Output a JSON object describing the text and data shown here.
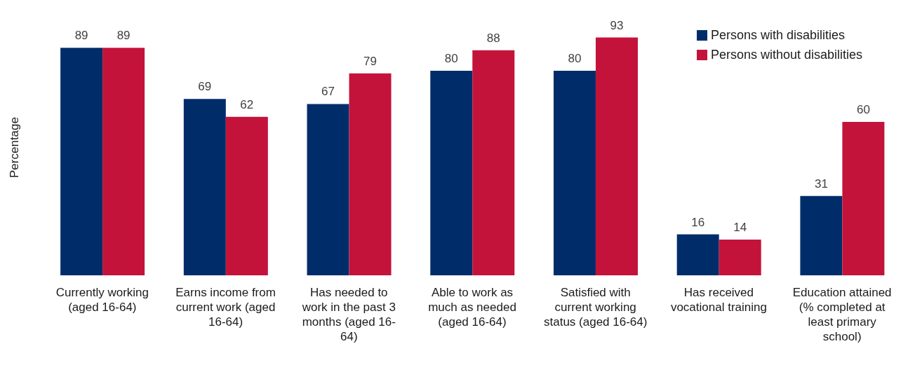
{
  "chart_data": {
    "type": "bar",
    "ylabel": "Percentage",
    "categories": [
      "Currently working (aged 16-64)",
      "Earns income from current work (aged 16-64)",
      "Has needed to work in the past 3 months (aged 16-64)",
      "Able to work as much as needed (aged 16-64)",
      "Satisfied with current working status (aged 16-64)",
      "Has received vocational training",
      "Education attained (% completed at least primary school)"
    ],
    "series": [
      {
        "name": "Persons with disabilities",
        "color": "#002d6a",
        "values": [
          89,
          69,
          67,
          80,
          80,
          16,
          31
        ]
      },
      {
        "name": "Persons without disabilities",
        "color": "#c4133a",
        "values": [
          89,
          62,
          79,
          88,
          93,
          14,
          60
        ]
      }
    ],
    "data_labels": true,
    "legend": "top right",
    "grid": false
  }
}
